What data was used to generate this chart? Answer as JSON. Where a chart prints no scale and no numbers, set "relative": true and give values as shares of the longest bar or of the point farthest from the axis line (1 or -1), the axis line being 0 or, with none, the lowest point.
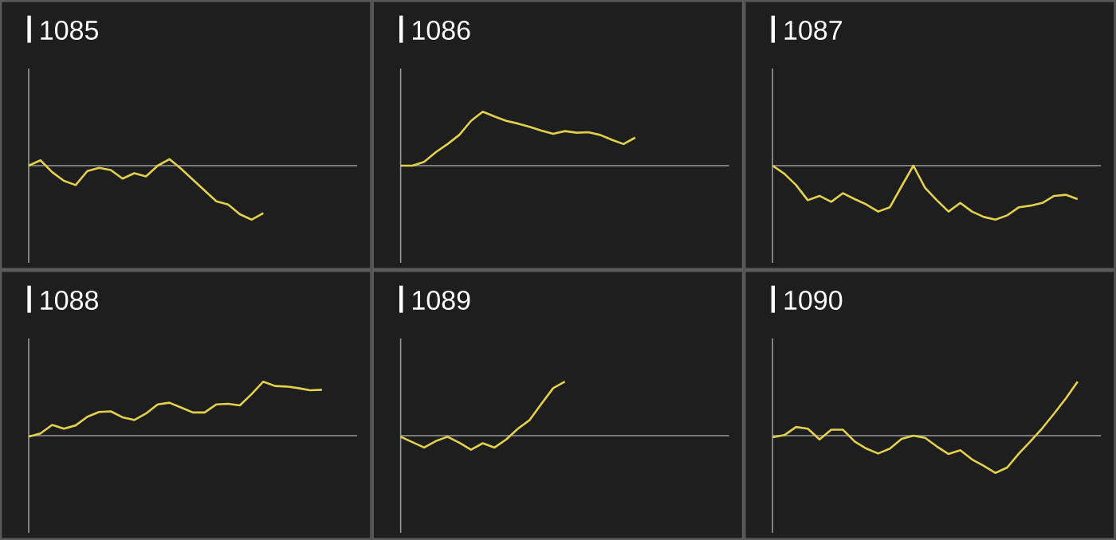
{
  "chart_data": [
    {
      "type": "line",
      "title": "1085",
      "relative": true,
      "categories": [
        null,
        null,
        null,
        null,
        null,
        null,
        null,
        null,
        null,
        null,
        null,
        null,
        null,
        null,
        null,
        null,
        null,
        null,
        null,
        null,
        null,
        null,
        null,
        null,
        null,
        null,
        null,
        null
      ],
      "color": "#e3d04c",
      "values": [
        0,
        0.1,
        -0.12,
        -0.28,
        -0.36,
        -0.1,
        -0.04,
        -0.08,
        -0.24,
        -0.14,
        -0.2,
        0,
        0.12,
        -0.06,
        -0.26,
        -0.46,
        -0.66,
        -0.72,
        -0.9,
        -1,
        -0.88,
        null,
        null,
        null,
        null,
        null,
        null,
        null
      ]
    },
    {
      "type": "line",
      "title": "1086",
      "relative": true,
      "categories": [
        null,
        null,
        null,
        null,
        null,
        null,
        null,
        null,
        null,
        null,
        null,
        null,
        null,
        null,
        null,
        null,
        null,
        null,
        null,
        null,
        null,
        null,
        null,
        null,
        null,
        null,
        null,
        null
      ],
      "color": "#e3d04c",
      "values": [
        0,
        0,
        0.07,
        0.25,
        0.4,
        0.57,
        0.83,
        1,
        0.91,
        0.83,
        0.78,
        0.72,
        0.65,
        0.59,
        0.64,
        0.61,
        0.62,
        0.57,
        0.48,
        0.4,
        0.52,
        null,
        null,
        null,
        null,
        null,
        null,
        null
      ]
    },
    {
      "type": "line",
      "title": "1087",
      "relative": true,
      "categories": [
        null,
        null,
        null,
        null,
        null,
        null,
        null,
        null,
        null,
        null,
        null,
        null,
        null,
        null,
        null,
        null,
        null,
        null,
        null,
        null,
        null,
        null,
        null,
        null,
        null,
        null,
        null,
        null
      ],
      "color": "#e3d04c",
      "values": [
        0,
        -0.15,
        -0.36,
        -0.64,
        -0.56,
        -0.67,
        -0.51,
        -0.62,
        -0.72,
        -0.85,
        -0.77,
        -0.38,
        0,
        -0.41,
        -0.64,
        -0.85,
        -0.69,
        -0.85,
        -0.95,
        -1,
        -0.92,
        -0.77,
        -0.74,
        -0.69,
        -0.56,
        -0.54,
        -0.62,
        null
      ]
    },
    {
      "type": "line",
      "title": "1088",
      "relative": true,
      "categories": [
        null,
        null,
        null,
        null,
        null,
        null,
        null,
        null,
        null,
        null,
        null,
        null,
        null,
        null,
        null,
        null,
        null,
        null,
        null,
        null,
        null,
        null,
        null,
        null,
        null,
        null,
        null,
        null
      ],
      "color": "#e3d04c",
      "values": [
        -0.02,
        0.04,
        0.2,
        0.13,
        0.19,
        0.35,
        0.44,
        0.45,
        0.34,
        0.29,
        0.41,
        0.58,
        0.61,
        0.52,
        0.43,
        0.43,
        0.58,
        0.59,
        0.56,
        0.77,
        1,
        0.92,
        0.91,
        0.88,
        0.84,
        0.85,
        null,
        null
      ]
    },
    {
      "type": "line",
      "title": "1089",
      "relative": true,
      "categories": [
        null,
        null,
        null,
        null,
        null,
        null,
        null,
        null,
        null,
        null,
        null,
        null,
        null,
        null,
        null,
        null,
        null,
        null,
        null,
        null,
        null,
        null,
        null,
        null,
        null,
        null,
        null,
        null
      ],
      "color": "#e3d04c",
      "values": [
        -0.02,
        -0.12,
        -0.22,
        -0.1,
        -0.02,
        -0.13,
        -0.26,
        -0.14,
        -0.22,
        -0.07,
        0.13,
        0.29,
        0.59,
        0.88,
        1,
        null,
        null,
        null,
        null,
        null,
        null,
        null,
        null,
        null,
        null,
        null,
        null,
        null
      ]
    },
    {
      "type": "line",
      "title": "1090",
      "relative": true,
      "categories": [
        null,
        null,
        null,
        null,
        null,
        null,
        null,
        null,
        null,
        null,
        null,
        null,
        null,
        null,
        null,
        null,
        null,
        null,
        null,
        null,
        null,
        null,
        null,
        null,
        null,
        null,
        null,
        null
      ],
      "color": "#e3d04c",
      "values": [
        -0.03,
        0.01,
        0.16,
        0.13,
        -0.07,
        0.11,
        0.11,
        -0.11,
        -0.24,
        -0.33,
        -0.24,
        -0.06,
        0,
        -0.04,
        -0.2,
        -0.34,
        -0.27,
        -0.44,
        -0.56,
        -0.69,
        -0.59,
        -0.33,
        -0.1,
        0.14,
        0.41,
        0.69,
        1,
        null
      ]
    }
  ]
}
